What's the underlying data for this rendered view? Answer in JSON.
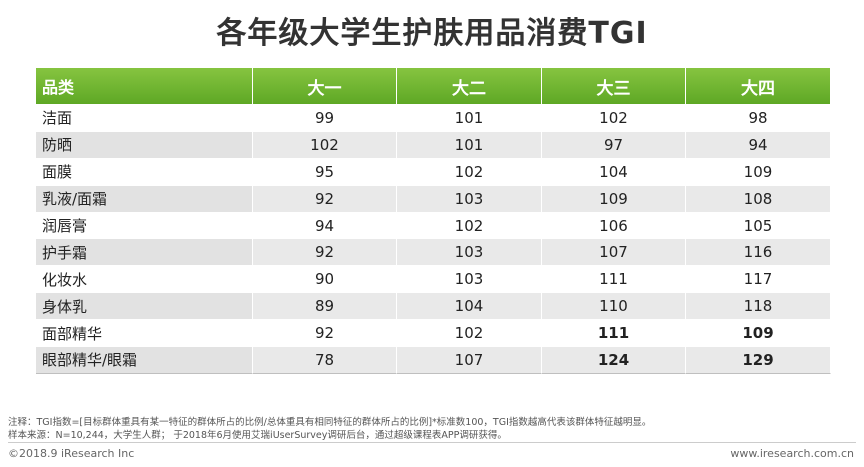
{
  "title": "各年级大学生护肤用品消费TGI",
  "table": {
    "headers": [
      "品类",
      "大一",
      "大二",
      "大三",
      "大四"
    ],
    "rows": [
      {
        "category": "洁面",
        "values": [
          "99",
          "101",
          "102",
          "98"
        ],
        "bold": [
          false,
          false,
          false,
          false
        ]
      },
      {
        "category": "防晒",
        "values": [
          "102",
          "101",
          "97",
          "94"
        ],
        "bold": [
          false,
          false,
          false,
          false
        ]
      },
      {
        "category": "面膜",
        "values": [
          "95",
          "102",
          "104",
          "109"
        ],
        "bold": [
          false,
          false,
          false,
          false
        ]
      },
      {
        "category": "乳液/面霜",
        "values": [
          "92",
          "103",
          "109",
          "108"
        ],
        "bold": [
          false,
          false,
          false,
          false
        ]
      },
      {
        "category": "润唇膏",
        "values": [
          "94",
          "102",
          "106",
          "105"
        ],
        "bold": [
          false,
          false,
          false,
          false
        ]
      },
      {
        "category": "护手霜",
        "values": [
          "92",
          "103",
          "107",
          "116"
        ],
        "bold": [
          false,
          false,
          false,
          false
        ]
      },
      {
        "category": "化妆水",
        "values": [
          "90",
          "103",
          "111",
          "117"
        ],
        "bold": [
          false,
          false,
          false,
          false
        ]
      },
      {
        "category": "身体乳",
        "values": [
          "89",
          "104",
          "110",
          "118"
        ],
        "bold": [
          false,
          false,
          false,
          false
        ]
      },
      {
        "category": "面部精华",
        "values": [
          "92",
          "102",
          "111",
          "109"
        ],
        "bold": [
          false,
          false,
          true,
          true
        ]
      },
      {
        "category": "眼部精华/眼霜",
        "values": [
          "78",
          "107",
          "124",
          "129"
        ],
        "bold": [
          false,
          false,
          true,
          true
        ]
      }
    ]
  },
  "notes": {
    "note1": "注释：TGI指数=[目标群体重具有某一特征的群体所占的比例/总体重具有相同特征的群体所占的比例]*标准数100，TGI指数越高代表该群体特征越明显。",
    "note2": "样本来源：N=10,244，大学生人群； 于2018年6月使用艾瑞iUserSurvey调研后台，通过超级课程表APP调研获得。"
  },
  "footer": {
    "copyright": "©2018.9 iResearch Inc",
    "website": "www.iresearch.com.cn"
  },
  "colors": {
    "header_green": "#6fb52e",
    "title": "#333333"
  }
}
